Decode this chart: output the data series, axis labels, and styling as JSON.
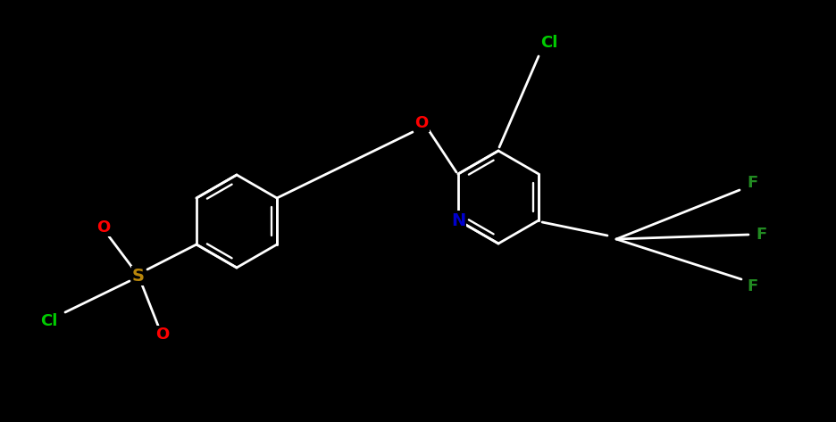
{
  "background_color": "#000000",
  "bond_color": "#ffffff",
  "bond_width": 2.0,
  "atom_colors": {
    "O": "#ff0000",
    "S": "#b8860b",
    "N": "#0000cd",
    "Cl": "#00cc00",
    "F": "#228b22"
  },
  "font_size": 13,
  "fig_width": 9.37,
  "fig_height": 4.73,
  "xlim": [
    0,
    9.37
  ],
  "ylim": [
    0,
    4.73
  ]
}
